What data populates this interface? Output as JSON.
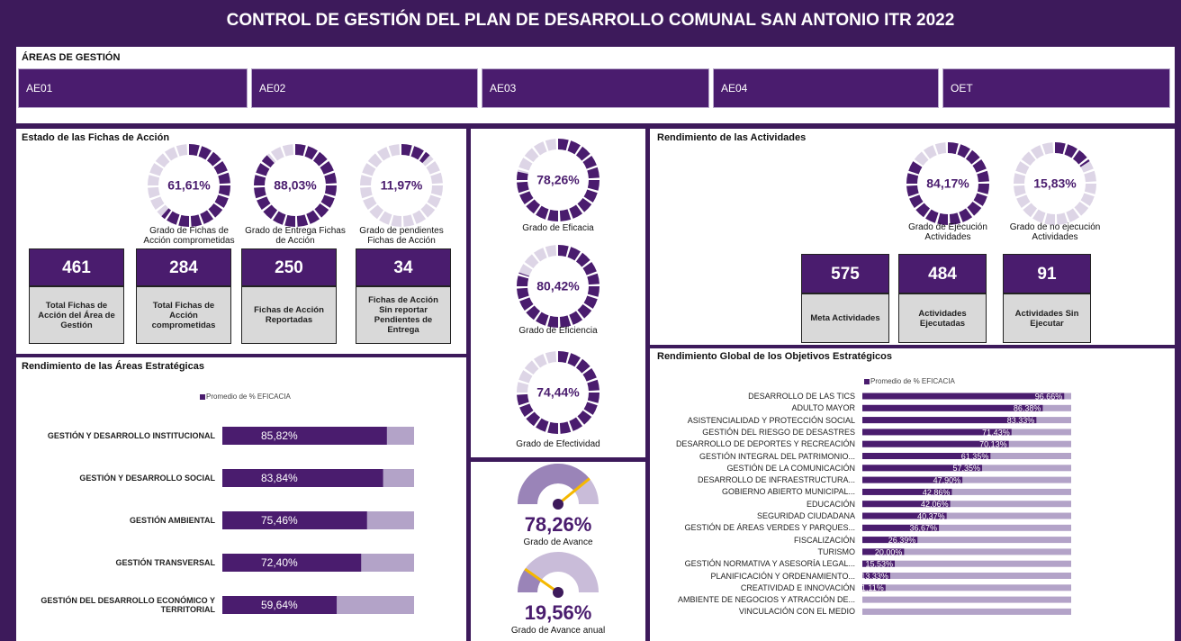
{
  "header": {
    "title": "CONTROL DE GESTIÓN DEL PLAN DE DESARROLLO COMUNAL SAN ANTONIO ITR 2022"
  },
  "areas": {
    "title": "ÁREAS DE GESTIÓN",
    "buttons": [
      "AE01",
      "AE02",
      "AE03",
      "AE04",
      "OET"
    ]
  },
  "fichas": {
    "title": "Estado de las Fichas de Acción",
    "donuts": [
      {
        "value": 61.61,
        "label": "61,61%",
        "caption": "Grado de Fichas de Acción comprometidas"
      },
      {
        "value": 88.03,
        "label": "88,03%",
        "caption": "Grado de Entrega Fichas de Acción"
      },
      {
        "value": 11.97,
        "label": "11,97%",
        "caption": "Grado de pendientes Fichas de Acción"
      }
    ],
    "cards": [
      {
        "value": 461,
        "caption": "Total Fichas de Acción del Área de Gestión"
      },
      {
        "value": 284,
        "caption": "Total Fichas de Acción comprometidas"
      },
      {
        "value": 250,
        "caption": "Fichas de Acción Reportadas"
      },
      {
        "value": 34,
        "caption": "Fichas de Acción Sin reportar Pendientes de Entrega"
      }
    ]
  },
  "grados": {
    "donuts": [
      {
        "value": 78.26,
        "label": "78,26%",
        "caption": "Grado de Eficacia"
      },
      {
        "value": 80.42,
        "label": "80,42%",
        "caption": "Grado de Eficiencia"
      },
      {
        "value": 74.44,
        "label": "74,44%",
        "caption": "Grado de Efectividad"
      }
    ],
    "gauges": [
      {
        "value": 78.26,
        "label": "78,26%",
        "caption": "Grado de Avance"
      },
      {
        "value": 19.56,
        "label": "19,56%",
        "caption": "Grado de Avance anual"
      }
    ]
  },
  "actividades": {
    "title": "Rendimiento de las Actividades",
    "donuts": [
      {
        "value": 84.17,
        "label": "84,17%",
        "caption": "Grado de Ejecución Actividades"
      },
      {
        "value": 15.83,
        "label": "15,83%",
        "caption": "Grado de no ejecución Actividades"
      }
    ],
    "cards": [
      {
        "value": 575,
        "caption": "Meta Actividades"
      },
      {
        "value": 484,
        "caption": "Actividades Ejecutadas"
      },
      {
        "value": 91,
        "caption": "Actividades Sin Ejecutar"
      }
    ]
  },
  "areas_chart": {
    "type": "bar",
    "title": "Rendimiento de las Áreas Estratégicas",
    "legend": "Promedio de % EFICACIA",
    "categories": [
      "GESTIÓN Y DESARROLLO INSTITUCIONAL",
      "GESTIÓN Y DESARROLLO SOCIAL",
      "GESTIÓN AMBIENTAL",
      "GESTIÓN TRANSVERSAL",
      "GESTIÓN DEL DESARROLLO ECONÓMICO Y TERRITORIAL"
    ],
    "values": [
      85.82,
      83.84,
      75.46,
      72.4,
      59.64
    ],
    "value_labels": [
      "85,82%",
      "83,84%",
      "75,46%",
      "72,40%",
      "59,64%"
    ],
    "xlim": [
      0,
      100
    ],
    "color": "#4a1c6e"
  },
  "objetivos_chart": {
    "type": "bar",
    "title": "Rendimiento Global de los Objetivos Estratégicos",
    "legend": "Promedio de % EFICACIA",
    "categories": [
      "DESARROLLO DE LAS TICS",
      "ADULTO MAYOR",
      "ASISTENCIALIDAD Y PROTECCIÓN SOCIAL",
      "GESTIÓN DEL RIESGO DE DESASTRES",
      "DESARROLLO DE DEPORTES Y RECREACIÓN",
      "GESTIÓN INTEGRAL DEL PATRIMONIO...",
      "GESTIÓN DE LA COMUNICACIÓN",
      "DESARROLLO DE INFRAESTRUCTURA...",
      "GOBIERNO ABIERTO MUNICIPAL...",
      "EDUCACIÓN",
      "SEGURIDAD CIUDADANA",
      "GESTIÓN DE ÁREAS VERDES Y PARQUES...",
      "FISCALIZACIÓN",
      "TURISMO",
      "GESTIÓN NORMATIVA Y ASESORÍA LEGAL...",
      "PLANIFICACIÓN Y ORDENAMIENTO...",
      "CREATIVIDAD E INNOVACIÓN",
      "AMBIENTE DE NEGOCIOS Y ATRACCIÓN DE...",
      "VINCULACIÓN CON EL MEDIO"
    ],
    "values": [
      96.66,
      86.38,
      83.33,
      71.43,
      70.13,
      61.35,
      57.35,
      47.9,
      42.86,
      42.06,
      40.37,
      36.67,
      26.39,
      20.0,
      15.53,
      13.33,
      11.11,
      0.0,
      0.0
    ],
    "value_labels": [
      "96,66%",
      "86,38%",
      "83,33%",
      "71,43%",
      "70,13%",
      "61,35%",
      "57,35%",
      "47,90%",
      "42,86%",
      "42,06%",
      "40,37%",
      "36,67%",
      "26,39%",
      "20,00%",
      "15,53%",
      "13,33%",
      "11,11%",
      "0,00%",
      "0,00%"
    ],
    "xlim": [
      0,
      100
    ],
    "color": "#4a1c6e"
  }
}
